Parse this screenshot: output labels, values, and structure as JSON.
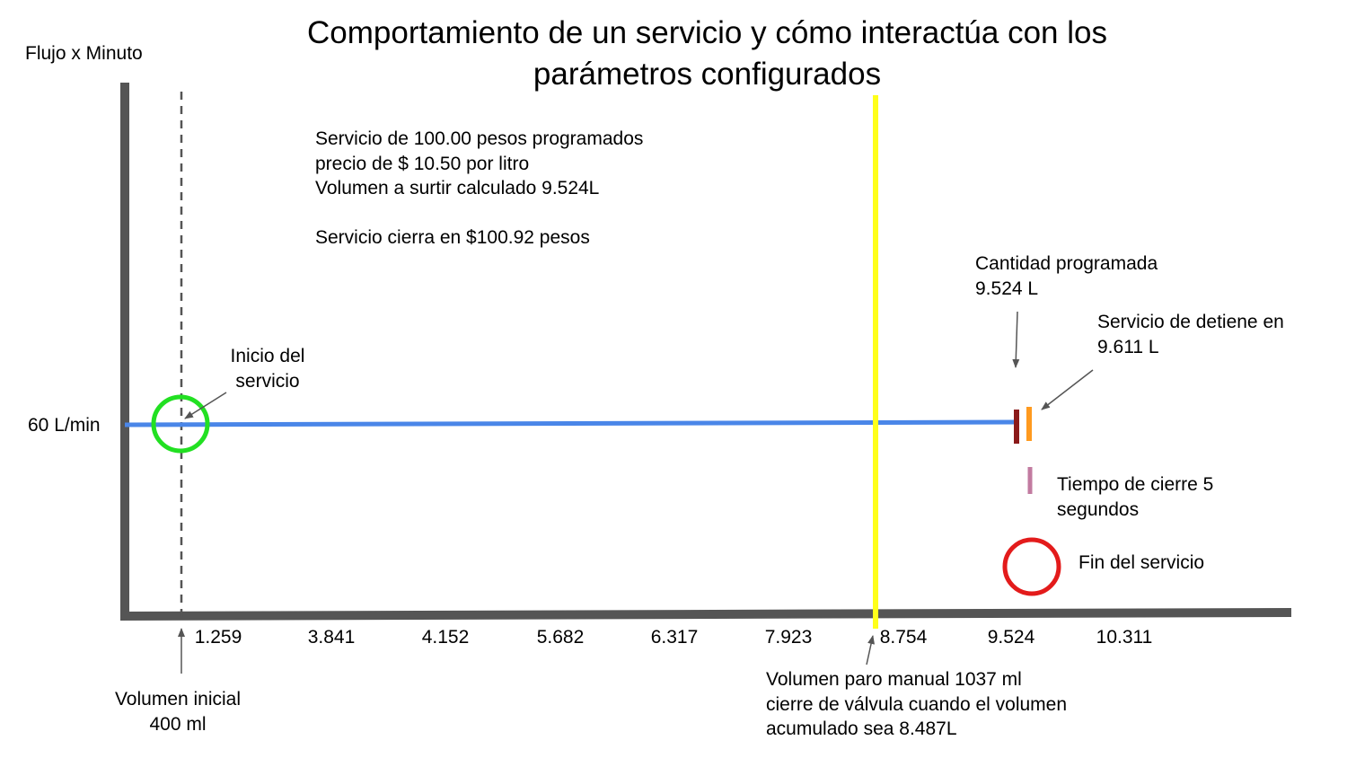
{
  "title": {
    "line1": "Comportamiento de un servicio y cómo interactúa con los",
    "line2": "parámetros configurados"
  },
  "y_axis_label": "Flujo x Minuto",
  "flow_label": "60 L/min",
  "x_ticks": [
    "1.259",
    "3.841",
    "4.152",
    "5.682",
    "6.317",
    "7.923",
    "8.754",
    "9.524",
    "10.311"
  ],
  "info": {
    "line1": "Servicio de 100.00 pesos programados",
    "line2": "precio de $ 10.50 por litro",
    "line3": "Volumen a surtir calculado 9.524L",
    "line4": "Servicio cierra en $100.92 pesos"
  },
  "annotations": {
    "inicio": {
      "line1": "Inicio del",
      "line2": "servicio"
    },
    "volumen_inicial": {
      "line1": "Volumen inicial",
      "line2": "400 ml"
    },
    "cantidad_programada": {
      "line1": "Cantidad programada",
      "line2": "9.524 L"
    },
    "servicio_detiene": {
      "line1": "Servicio de detiene en",
      "line2": "9.611 L"
    },
    "tiempo_cierre": {
      "line1": "Tiempo de cierre 5",
      "line2": "segundos"
    },
    "fin": "Fin del servicio",
    "paro_manual": {
      "line1": "Volumen paro manual 1037 ml",
      "line2": "cierre de válvula cuando el volumen",
      "line3": "acumulado sea 8.487L"
    }
  },
  "colors": {
    "axis": "#555555",
    "flow_line": "#4a86e8",
    "start_circle": "#22e022",
    "end_circle": "#e31b1b",
    "manual_stop_line": "#ffff1a",
    "programmed_mark": "#8b1a1a",
    "stop_mark": "#ff9a1f",
    "closing_time_mark": "#c27ba0",
    "dashed_line": "#555555"
  }
}
